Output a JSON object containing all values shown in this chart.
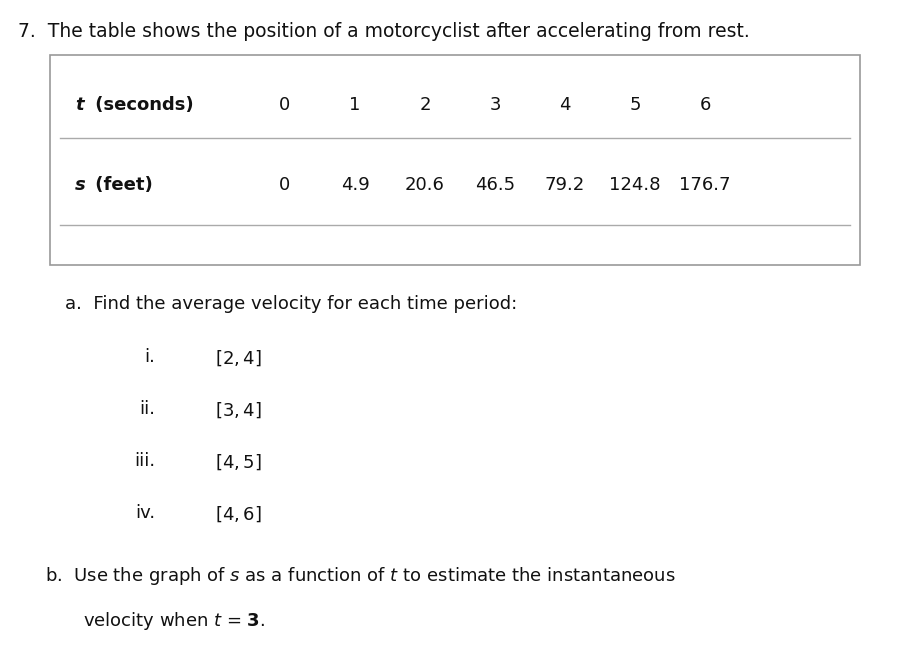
{
  "title": "7.  The table shows the position of a motorcyclist after accelerating from rest.",
  "t_values": [
    "0",
    "1",
    "2",
    "3",
    "4",
    "5",
    "6"
  ],
  "s_values": [
    "0",
    "4.9",
    "20.6",
    "46.5",
    "79.2",
    "124.8",
    "176.7"
  ],
  "part_a_text": "a.  Find the average velocity for each time period:",
  "sub_prefixes": [
    "i.",
    "ii.",
    "iii.",
    "iv."
  ],
  "sub_intervals": [
    "[2, 4]",
    "[3, 4]",
    "[4, 5]",
    "[4, 6]"
  ],
  "bg_color": "#ffffff",
  "text_color": "#111111",
  "box_edge_color": "#999999",
  "line_color": "#aaaaaa",
  "font_size_title": 13.5,
  "font_size_body": 13,
  "font_size_table": 13
}
